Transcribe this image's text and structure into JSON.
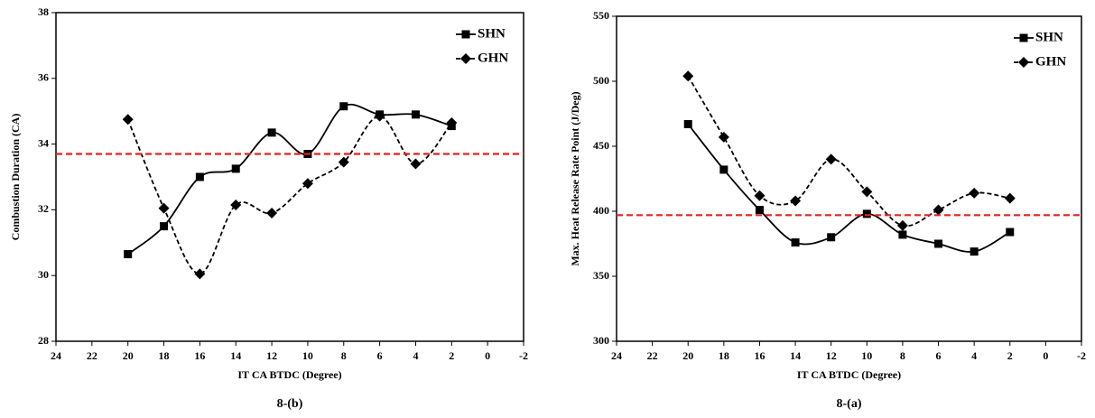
{
  "chart_data": [
    {
      "type": "line",
      "caption": "8-(b)",
      "x_label": "IT CA BTDC (Degree)",
      "y_label": "Combustion Duration (CA)",
      "x": [
        20,
        18,
        16,
        14,
        12,
        10,
        8,
        6,
        4,
        2
      ],
      "xlim": [
        24,
        -2
      ],
      "xticks": [
        24,
        22,
        20,
        18,
        16,
        14,
        12,
        10,
        8,
        6,
        4,
        2,
        0,
        -2
      ],
      "ylim": [
        28,
        38
      ],
      "yticks": [
        28,
        30,
        32,
        34,
        36,
        38
      ],
      "legend": "top-right",
      "series": [
        {
          "name": "SHN",
          "color": "#000000",
          "marker": "square",
          "line_style": "solid",
          "values": [
            30.65,
            31.5,
            33.0,
            33.25,
            34.35,
            33.7,
            35.15,
            34.9,
            34.9,
            34.55
          ]
        },
        {
          "name": "GHN",
          "color": "#000000",
          "marker": "diamond",
          "line_style": "dashed",
          "values": [
            34.75,
            32.05,
            30.05,
            32.15,
            31.9,
            32.8,
            33.45,
            34.85,
            33.4,
            34.65
          ]
        }
      ],
      "reference_line": {
        "value": 33.7,
        "color": "#e8211d"
      }
    },
    {
      "type": "line",
      "caption": "8-(a)",
      "x_label": "IT CA BTDC (Degree)",
      "y_label": "Max. Heat Release Rate Point (J/Deg)",
      "x": [
        20,
        18,
        16,
        14,
        12,
        10,
        8,
        6,
        4,
        2
      ],
      "xlim": [
        24,
        -2
      ],
      "xticks": [
        24,
        22,
        20,
        18,
        16,
        14,
        12,
        10,
        8,
        6,
        4,
        2,
        0,
        -2
      ],
      "ylim": [
        300,
        550
      ],
      "yticks": [
        300,
        350,
        400,
        450,
        500,
        550
      ],
      "legend": "top-right",
      "series": [
        {
          "name": "SHN",
          "color": "#000000",
          "marker": "square",
          "line_style": "solid",
          "values": [
            467,
            432,
            401,
            376,
            380,
            398,
            382,
            375,
            369,
            384
          ]
        },
        {
          "name": "GHN",
          "color": "#000000",
          "marker": "diamond",
          "line_style": "dashed",
          "values": [
            504,
            457,
            412,
            408,
            440,
            415,
            389,
            401,
            414,
            410
          ]
        }
      ],
      "reference_line": {
        "value": 397,
        "color": "#e8211d"
      }
    }
  ]
}
